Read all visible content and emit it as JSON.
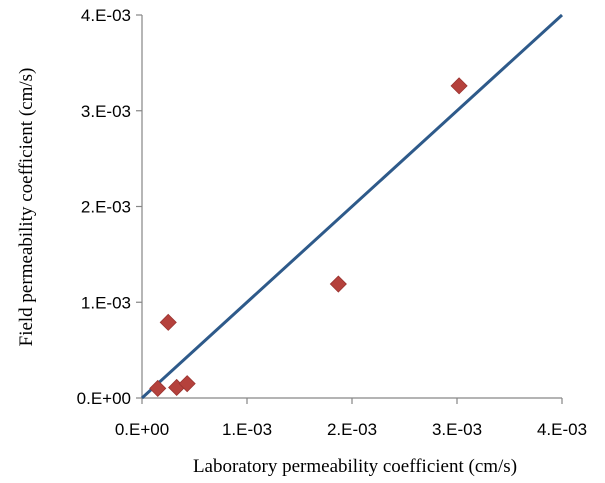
{
  "chart_data": {
    "type": "scatter",
    "xlabel": "Laboratory permeability coefficient (cm/s)",
    "ylabel": "Field permeability coefficient (cm/s)",
    "xlim": [
      0,
      0.004
    ],
    "ylim": [
      0,
      0.004
    ],
    "xticks": [
      0,
      0.001,
      0.002,
      0.003,
      0.004
    ],
    "yticks": [
      0,
      0.001,
      0.002,
      0.003,
      0.004
    ],
    "xtick_labels": [
      "0.E+00",
      "1.E-03",
      "2.E-03",
      "3.E-03",
      "4.E-03"
    ],
    "ytick_labels": [
      "0.E+00",
      "1.E-03",
      "2.E-03",
      "3.E-03",
      "4.E-03"
    ],
    "grid": false,
    "series": [
      {
        "marker": "diamond",
        "color": "#b5413c",
        "points": [
          {
            "x": 0.00015,
            "y": 0.0001
          },
          {
            "x": 0.00025,
            "y": 0.00079
          },
          {
            "x": 0.00033,
            "y": 0.00011
          },
          {
            "x": 0.00043,
            "y": 0.00015
          },
          {
            "x": 0.00187,
            "y": 0.00119
          },
          {
            "x": 0.00302,
            "y": 0.00326
          }
        ]
      }
    ],
    "reference_line": {
      "color": "#2e5a8a",
      "from": {
        "x": 0,
        "y": 0
      },
      "to": {
        "x": 0.004,
        "y": 0.004
      }
    }
  }
}
